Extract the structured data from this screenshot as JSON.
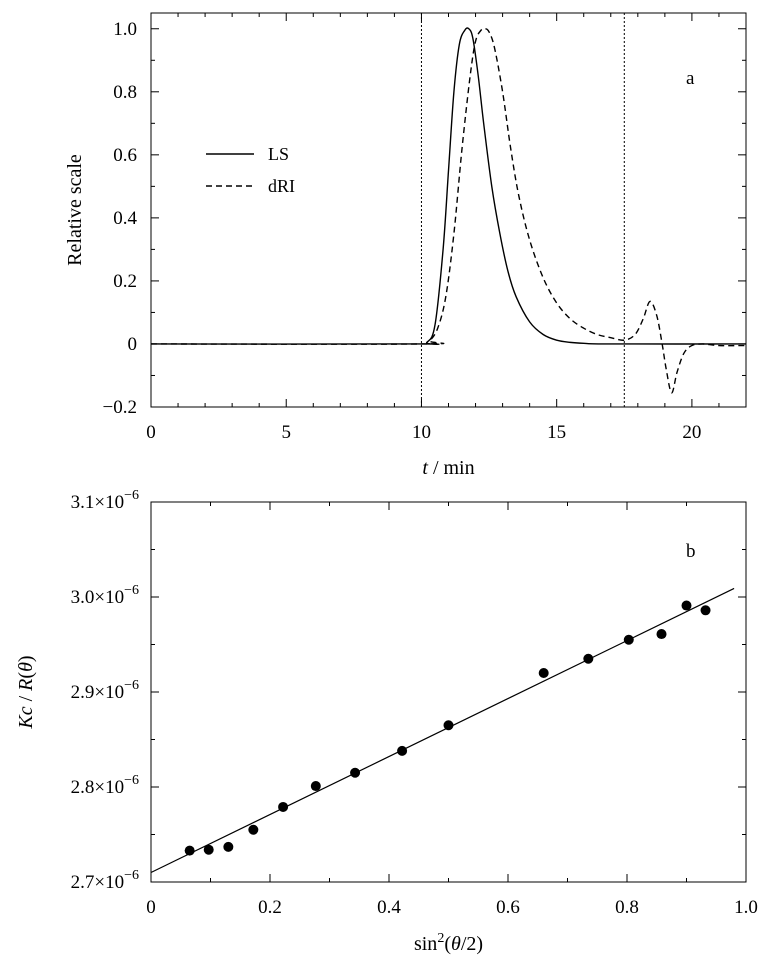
{
  "chart_data": [
    {
      "type": "line",
      "panel_label": "a",
      "xlabel": {
        "italic": "t",
        "rest": " / min"
      },
      "ylabel": "Relative scale",
      "xlim": [
        0,
        22
      ],
      "ylim": [
        -0.2,
        1.05
      ],
      "x_ticks": [
        0,
        5,
        10,
        15,
        20
      ],
      "x_tick_labels": [
        "0",
        "5",
        "10",
        "15",
        "20"
      ],
      "y_ticks": [
        -0.2,
        0,
        0.2,
        0.4,
        0.6,
        0.8,
        1.0
      ],
      "y_tick_labels": [
        "−0.2",
        "0",
        "0.2",
        "0.4",
        "0.6",
        "0.8",
        "1.0"
      ],
      "vertical_lines": [
        10,
        17.5
      ],
      "legend": {
        "placement": "upper-left",
        "entries": [
          "LS",
          "dRI"
        ]
      },
      "series": [
        {
          "name": "LS",
          "style": "solid",
          "x": [
            0,
            9.8,
            10.2,
            10.5,
            10.8,
            11.0,
            11.2,
            11.4,
            11.6,
            11.75,
            11.9,
            12.1,
            12.3,
            12.6,
            12.9,
            13.2,
            13.5,
            14.0,
            14.5,
            15.0,
            15.5,
            16.0,
            17.0,
            22
          ],
          "y": [
            0,
            0,
            0.005,
            0.06,
            0.3,
            0.55,
            0.8,
            0.95,
            0.995,
            1.0,
            0.97,
            0.85,
            0.7,
            0.5,
            0.35,
            0.23,
            0.15,
            0.07,
            0.03,
            0.012,
            0.005,
            0.002,
            0.0,
            0
          ]
        },
        {
          "name": "dRI",
          "style": "dashed",
          "x": [
            0,
            10.0,
            10.3,
            10.6,
            10.9,
            11.2,
            11.5,
            11.8,
            12.0,
            12.2,
            12.35,
            12.5,
            12.7,
            13.0,
            13.3,
            13.6,
            14.0,
            14.5,
            15.0,
            15.5,
            16.0,
            16.5,
            17.0,
            17.5,
            17.9,
            18.2,
            18.45,
            18.7,
            18.9,
            19.05,
            19.25,
            19.45,
            19.7,
            20.0,
            20.4,
            21.0,
            22.0
          ],
          "y": [
            0,
            0,
            0.01,
            0.05,
            0.15,
            0.35,
            0.62,
            0.85,
            0.96,
            0.995,
            1.0,
            0.99,
            0.94,
            0.8,
            0.62,
            0.47,
            0.33,
            0.21,
            0.13,
            0.08,
            0.05,
            0.03,
            0.02,
            0.012,
            0.03,
            0.08,
            0.135,
            0.09,
            0.0,
            -0.08,
            -0.155,
            -0.09,
            -0.03,
            -0.005,
            0.0,
            -0.005,
            -0.005
          ]
        }
      ]
    },
    {
      "type": "scatter",
      "panel_label": "b",
      "xlabel": {
        "pre": "sin",
        "sup": "2",
        "mid": "(",
        "italic": "θ",
        "post": "/2)"
      },
      "ylabel": {
        "italic1": "Kc",
        "sep": " / ",
        "italic2": "R",
        "mid": "(",
        "italic3": "θ",
        "post": ")"
      },
      "xlim": [
        0,
        1.0
      ],
      "ylim": [
        2.7e-06,
        3.1e-06
      ],
      "x_ticks": [
        0,
        0.2,
        0.4,
        0.6,
        0.8,
        1.0
      ],
      "x_tick_labels": [
        "0",
        "0.2",
        "0.4",
        "0.6",
        "0.8",
        "1.0"
      ],
      "y_ticks": [
        2.7e-06,
        2.8e-06,
        2.9e-06,
        3e-06,
        3.1e-06
      ],
      "y_tick_labels": [
        {
          "mant": "2.7×10",
          "exp": "−6"
        },
        {
          "mant": "2.8×10",
          "exp": "−6"
        },
        {
          "mant": "2.9×10",
          "exp": "−6"
        },
        {
          "mant": "3.0×10",
          "exp": "−6"
        },
        {
          "mant": "3.1×10",
          "exp": "−6"
        }
      ],
      "points": {
        "x": [
          0.065,
          0.097,
          0.13,
          0.172,
          0.222,
          0.277,
          0.343,
          0.422,
          0.5,
          0.66,
          0.735,
          0.803,
          0.858,
          0.9,
          0.932
        ],
        "y": [
          2.733e-06,
          2.734e-06,
          2.737e-06,
          2.755e-06,
          2.779e-06,
          2.801e-06,
          2.815e-06,
          2.838e-06,
          2.865e-06,
          2.92e-06,
          2.935e-06,
          2.955e-06,
          2.961e-06,
          2.991e-06,
          2.986e-06
        ]
      },
      "fit_line": {
        "x": [
          0,
          0.98
        ],
        "y": [
          2.71e-06,
          3.009e-06
        ]
      }
    }
  ]
}
